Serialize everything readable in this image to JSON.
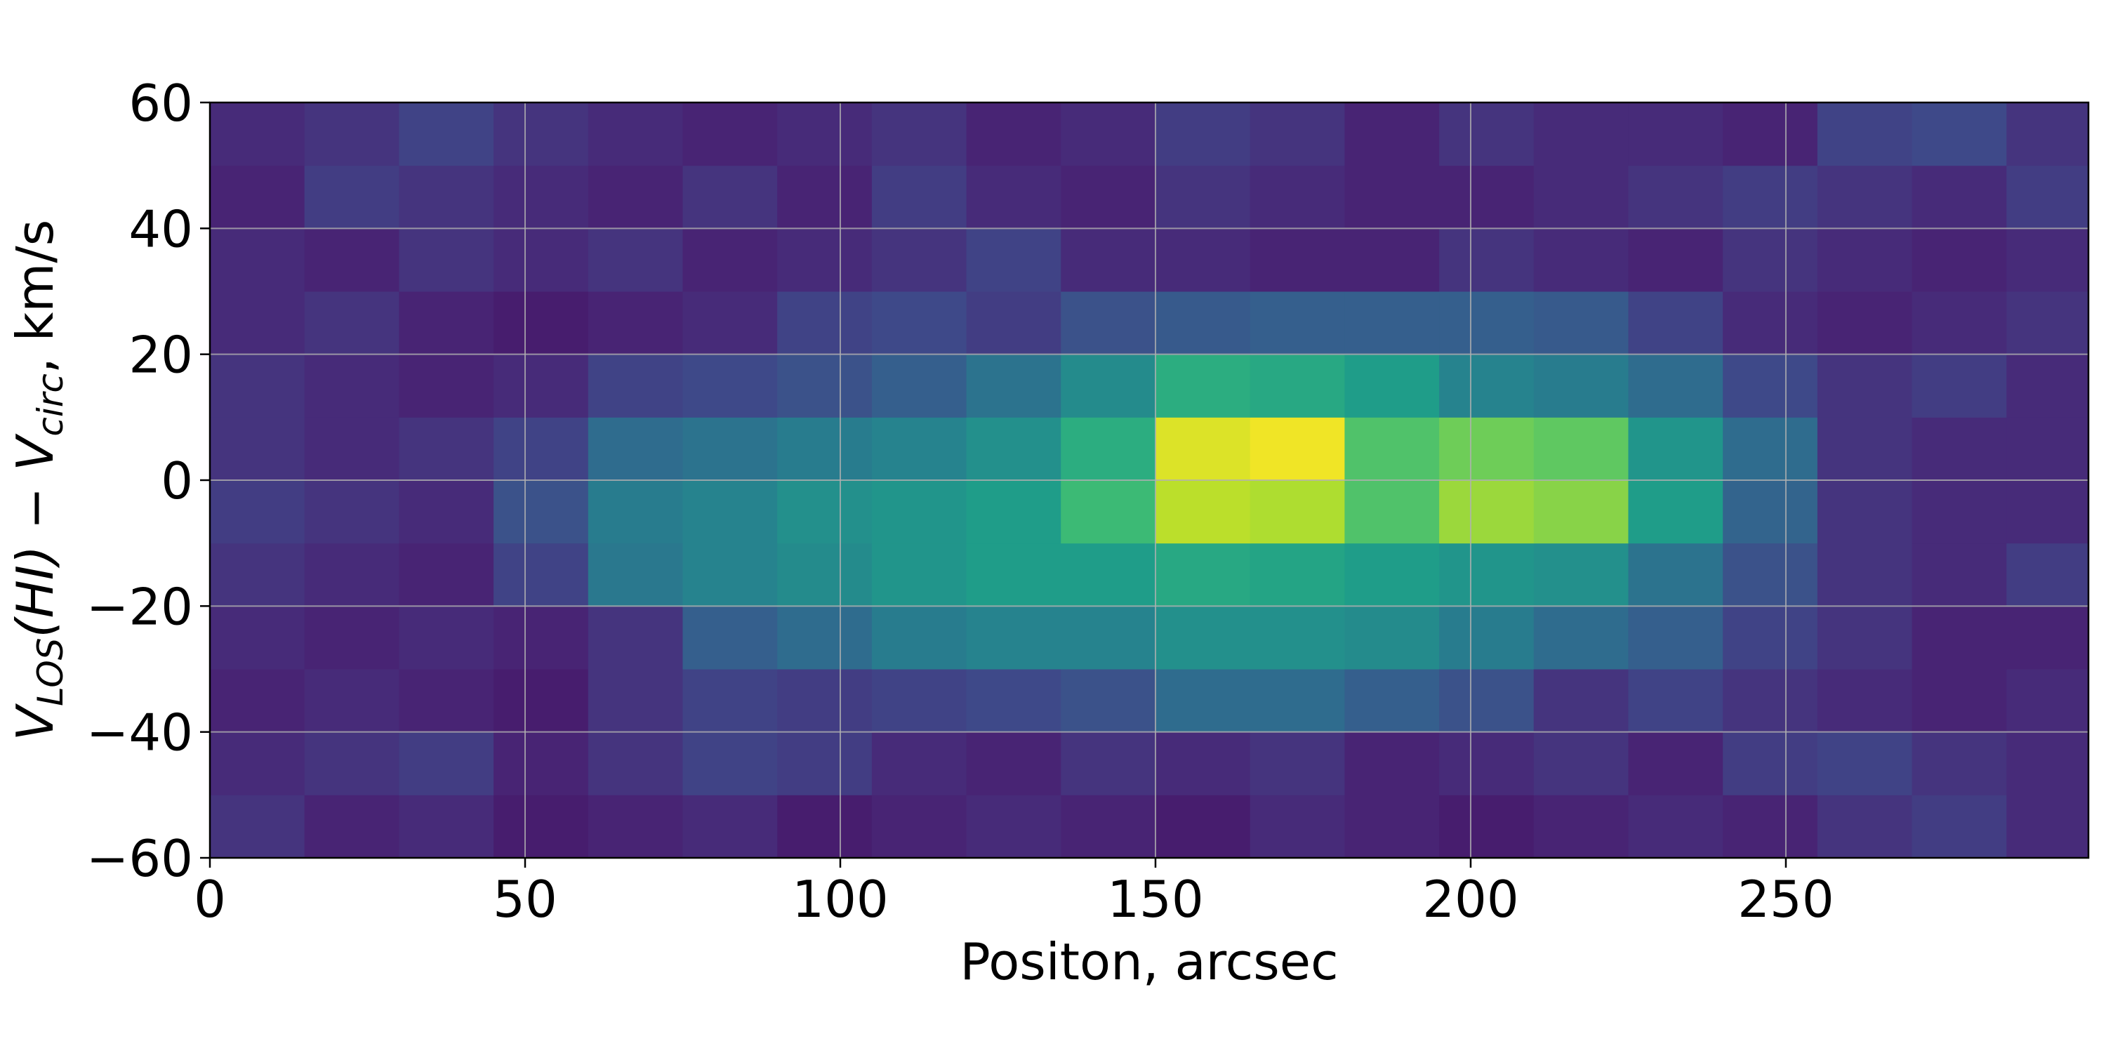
{
  "chart_data": {
    "type": "heatmap",
    "xlabel": "Positon, arcsec",
    "ylabel": [
      "V",
      "LOS",
      "(HI) − V",
      "circ",
      ", km/s"
    ],
    "colormap": "viridis",
    "grid": true,
    "xlim": [
      0,
      298
    ],
    "ylim": [
      -60,
      60
    ],
    "xticks": [
      0,
      50,
      100,
      150,
      200,
      250
    ],
    "yticks": [
      {
        "value": -60,
        "label": "−60"
      },
      {
        "value": -40,
        "label": "−40"
      },
      {
        "value": -20,
        "label": "−20"
      },
      0,
      20,
      40,
      60
    ],
    "x_edges": [
      0,
      15,
      30,
      45,
      60,
      75,
      90,
      105,
      120,
      135,
      150,
      165,
      180,
      195,
      210,
      225,
      240,
      255,
      270,
      285,
      300
    ],
    "y_edges": [
      -60,
      -50,
      -40,
      -30,
      -20,
      -10,
      0,
      10,
      20,
      30,
      40,
      50,
      60
    ],
    "values": [
      [
        0.15,
        0.1,
        0.12,
        0.08,
        0.1,
        0.12,
        0.08,
        0.1,
        0.12,
        0.1,
        0.08,
        0.12,
        0.1,
        0.08,
        0.1,
        0.12,
        0.1,
        0.15,
        0.18,
        0.12
      ],
      [
        0.12,
        0.15,
        0.18,
        0.1,
        0.15,
        0.2,
        0.18,
        0.12,
        0.1,
        0.15,
        0.12,
        0.15,
        0.1,
        0.12,
        0.15,
        0.1,
        0.18,
        0.2,
        0.15,
        0.12
      ],
      [
        0.1,
        0.12,
        0.1,
        0.08,
        0.15,
        0.2,
        0.18,
        0.2,
        0.22,
        0.25,
        0.35,
        0.35,
        0.3,
        0.25,
        0.15,
        0.2,
        0.15,
        0.12,
        0.1,
        0.12
      ],
      [
        0.12,
        0.1,
        0.12,
        0.1,
        0.15,
        0.3,
        0.35,
        0.42,
        0.45,
        0.45,
        0.5,
        0.5,
        0.48,
        0.42,
        0.35,
        0.3,
        0.2,
        0.15,
        0.1,
        0.1
      ],
      [
        0.15,
        0.12,
        0.1,
        0.2,
        0.4,
        0.45,
        0.48,
        0.52,
        0.55,
        0.55,
        0.6,
        0.58,
        0.55,
        0.52,
        0.5,
        0.38,
        0.25,
        0.15,
        0.12,
        0.18
      ],
      [
        0.18,
        0.15,
        0.12,
        0.25,
        0.42,
        0.45,
        0.5,
        0.52,
        0.55,
        0.68,
        0.9,
        0.88,
        0.72,
        0.85,
        0.82,
        0.55,
        0.32,
        0.15,
        0.12,
        0.12
      ],
      [
        0.15,
        0.12,
        0.15,
        0.2,
        0.35,
        0.38,
        0.42,
        0.45,
        0.5,
        0.62,
        0.95,
        0.98,
        0.72,
        0.78,
        0.75,
        0.52,
        0.35,
        0.15,
        0.12,
        0.12
      ],
      [
        0.15,
        0.12,
        0.1,
        0.12,
        0.2,
        0.22,
        0.25,
        0.3,
        0.38,
        0.48,
        0.62,
        0.6,
        0.55,
        0.45,
        0.42,
        0.35,
        0.22,
        0.15,
        0.18,
        0.12
      ],
      [
        0.12,
        0.15,
        0.1,
        0.08,
        0.1,
        0.12,
        0.2,
        0.22,
        0.18,
        0.25,
        0.28,
        0.3,
        0.3,
        0.3,
        0.28,
        0.2,
        0.12,
        0.1,
        0.12,
        0.15
      ],
      [
        0.12,
        0.1,
        0.15,
        0.12,
        0.15,
        0.1,
        0.12,
        0.15,
        0.2,
        0.12,
        0.12,
        0.1,
        0.1,
        0.15,
        0.12,
        0.1,
        0.15,
        0.12,
        0.1,
        0.12
      ],
      [
        0.1,
        0.18,
        0.15,
        0.12,
        0.1,
        0.15,
        0.1,
        0.18,
        0.12,
        0.1,
        0.15,
        0.12,
        0.1,
        0.1,
        0.12,
        0.15,
        0.18,
        0.15,
        0.12,
        0.18
      ],
      [
        0.12,
        0.15,
        0.2,
        0.15,
        0.12,
        0.1,
        0.12,
        0.15,
        0.1,
        0.12,
        0.18,
        0.15,
        0.1,
        0.15,
        0.12,
        0.12,
        0.1,
        0.2,
        0.22,
        0.15
      ]
    ]
  }
}
